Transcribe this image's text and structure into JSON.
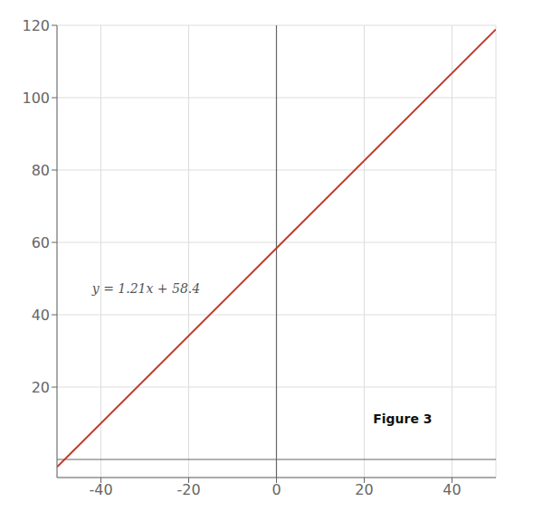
{
  "chart_data": {
    "type": "line",
    "x": [
      -50,
      50
    ],
    "series": [
      {
        "values": [
          -2.1,
          118.9
        ],
        "color": "#c0392b"
      }
    ],
    "xlim": [
      -50,
      50
    ],
    "ylim": [
      -5,
      120
    ],
    "xticks": [
      -40,
      -20,
      0,
      20,
      40
    ],
    "yticks": [
      20,
      40,
      60,
      80,
      100,
      120
    ],
    "grid": true,
    "annotations": [
      {
        "text": "y = 1.21x + 58.4",
        "x": -42,
        "y": 46
      },
      {
        "text": "Figure 3",
        "x": 22,
        "y": 10
      }
    ]
  }
}
